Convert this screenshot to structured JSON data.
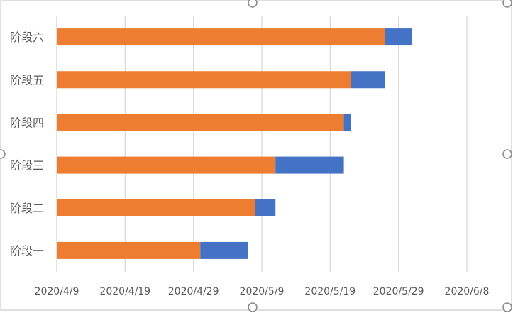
{
  "chart_data": {
    "type": "bar",
    "orientation": "horizontal",
    "stacked": true,
    "categories": [
      "阶段一",
      "阶段二",
      "阶段三",
      "阶段四",
      "阶段五",
      "阶段六"
    ],
    "series": [
      {
        "offset_dates": [
          "2020/4/30",
          "2020/5/8",
          "2020/5/11",
          "2020/5/21",
          "2020/5/22",
          "2020/5/27"
        ]
      },
      {
        "durations": [
          7,
          3,
          10,
          1,
          5,
          4
        ]
      }
    ],
    "x_ticks": [
      "2020/4/9",
      "2020/4/19",
      "2020/4/29",
      "2020/5/9",
      "2020/5/19",
      "2020/5/29",
      "2020/6/8"
    ],
    "xlim": [
      "2020/4/9",
      "2020/6/8"
    ],
    "grid": true,
    "colors": {
      "segment1": "#ED7D31",
      "segment2": "#4472C4",
      "grid": "#D9D9D9",
      "text": "#595959"
    }
  }
}
